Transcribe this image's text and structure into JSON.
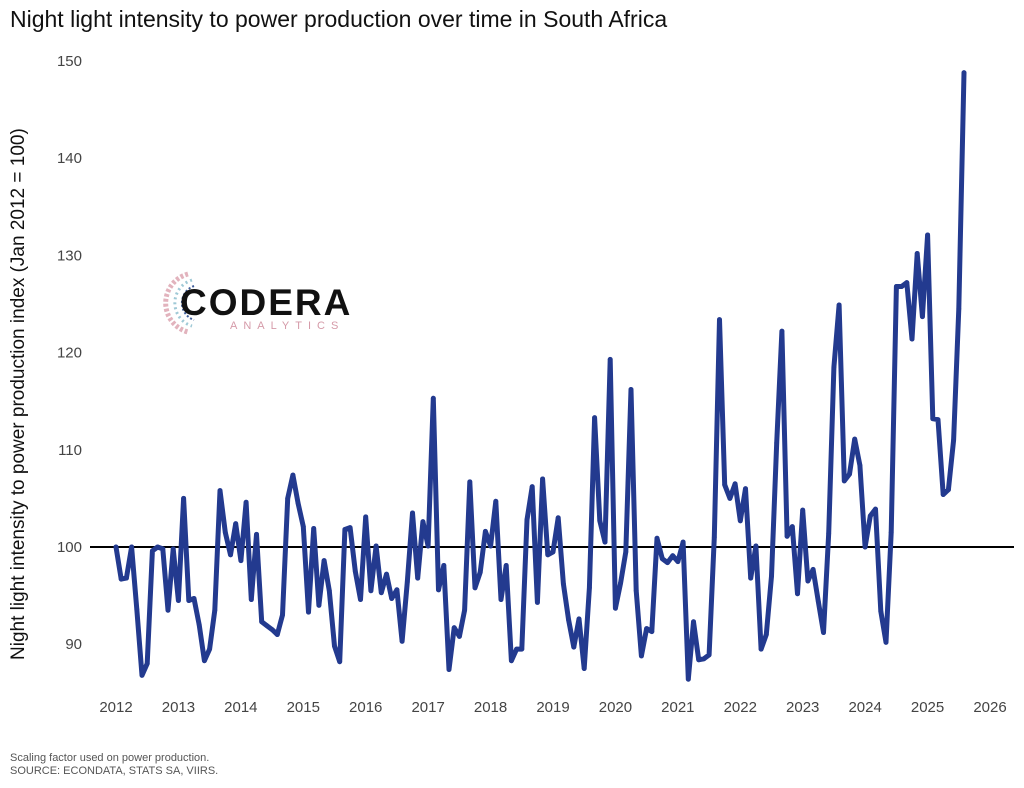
{
  "chart_data": {
    "type": "line",
    "title": "Night light intensity to power production over time in South Africa",
    "xlabel": "",
    "ylabel": "Night light intensity to power production index (Jan 2012 = 100)",
    "xlim": [
      2012,
      2026
    ],
    "ylim": [
      85,
      150
    ],
    "x_ticks": [
      "2012",
      "2013",
      "2014",
      "2015",
      "2016",
      "2017",
      "2018",
      "2019",
      "2020",
      "2021",
      "2022",
      "2023",
      "2024",
      "2025",
      "2026"
    ],
    "y_ticks": [
      "90",
      "100",
      "110",
      "120",
      "130",
      "140",
      "150"
    ],
    "reference_line": 100,
    "grid": false,
    "line_color": "#233a8f",
    "reference_color": "#000000",
    "series": [
      {
        "name": "Night light intensity to power production index",
        "start": "2012-01",
        "frequency": "monthly",
        "values": [
          100,
          96.7,
          96.8,
          100,
          93.6,
          86.8,
          88,
          99.6,
          100,
          99.8,
          93.5,
          99.8,
          94.5,
          105,
          94.5,
          94.7,
          92,
          88.3,
          89.5,
          93.5,
          105.8,
          101.5,
          99.2,
          102.4,
          98.6,
          104.6,
          94.6,
          101.3,
          92.3,
          91.9,
          91.5,
          91.0,
          93,
          105,
          107.4,
          104.5,
          102.1,
          93.3,
          101.9,
          94,
          98.6,
          95.5,
          89.8,
          88.2,
          101.8,
          102,
          97.5,
          94.6,
          103.1,
          95.5,
          100.1,
          95.3,
          97.2,
          94.7,
          95.6,
          90.3,
          96.4,
          103.5,
          96.8,
          102.6,
          100.1,
          115.3,
          95.6,
          98.1,
          87.4,
          91.7,
          90.8,
          93.5,
          106.7,
          95.8,
          97.4,
          101.6,
          100.1,
          104.7,
          94.6,
          98.1,
          88.3,
          89.5,
          89.5,
          102.8,
          106.2,
          94.3,
          107,
          99.2,
          99.5,
          103,
          96.2,
          92.5,
          89.7,
          92.6,
          87.5,
          95.8,
          113.3,
          102.7,
          100.5,
          119.3,
          93.7,
          96.3,
          99.5,
          116.2,
          95.5,
          88.8,
          91.6,
          91.3,
          100.9,
          98.8,
          98.4,
          99.1,
          98.5,
          100.5,
          86.4,
          92.3,
          88.4,
          88.5,
          88.9,
          101,
          123.4,
          106.4,
          105,
          106.5,
          102.7,
          106,
          96.8,
          100.1,
          89.5,
          91,
          97,
          110.7,
          122.2,
          101.1,
          102.1,
          95.2,
          103.8,
          96.5,
          97.7,
          94.4,
          91.2,
          101.4,
          118.5,
          124.9,
          106.8,
          107.5,
          111.1,
          108.4,
          100,
          103.2,
          103.9,
          93.4,
          90.2,
          101.5,
          126.8,
          126.8,
          127.2,
          121.4,
          130.2,
          123.7,
          132.1,
          113.2,
          113.1,
          105.4,
          105.9,
          111,
          124.5,
          148.8
        ]
      }
    ],
    "legend": "none"
  },
  "caption": {
    "line1": "Scaling factor used on power production.",
    "line2": "SOURCE: ECONDATA, STATS SA, VIIRS."
  },
  "logo": {
    "name": "CODERA",
    "tagline": "ANALYTICS"
  }
}
